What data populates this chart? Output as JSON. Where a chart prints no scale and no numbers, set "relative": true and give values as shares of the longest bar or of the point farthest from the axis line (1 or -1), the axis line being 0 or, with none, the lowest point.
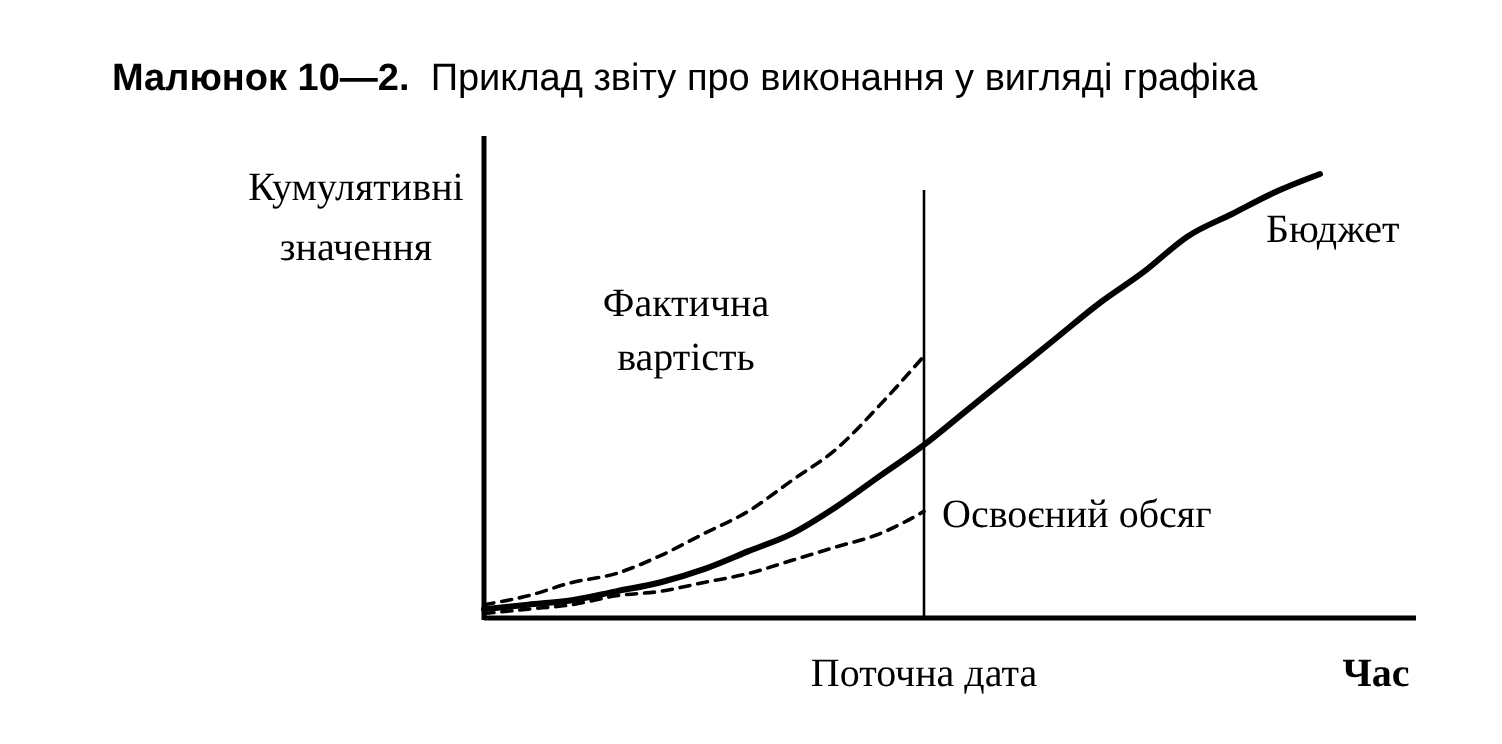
{
  "chart_data": {
    "type": "line",
    "title": "Малюнок 10—2.  Приклад звіту про виконання у вигляді графіка",
    "xlabel": "Час",
    "ylabel": "Кумулятивні значення",
    "relative": true,
    "categories": [
      null,
      null,
      null,
      null,
      null,
      null,
      null,
      null,
      null,
      null,
      null,
      null,
      null,
      null,
      null,
      null,
      null,
      null,
      null,
      null
    ],
    "series": [
      {
        "name": "Бюджет",
        "color": "#000000",
        "line_style": "solid",
        "values": [
          0.02,
          0.03,
          0.04,
          0.06,
          0.08,
          0.11,
          0.15,
          0.19,
          0.25,
          0.32,
          0.39,
          0.47,
          0.55,
          0.63,
          0.71,
          0.78,
          0.86,
          0.91,
          0.96,
          1
        ]
      },
      {
        "name": "Фактична вартість",
        "color": "#000000",
        "line_style": "dashed",
        "values": [
          0.03,
          0.05,
          0.08,
          0.1,
          0.14,
          0.19,
          0.24,
          0.31,
          0.38,
          0.48,
          0.59,
          null,
          null,
          null,
          null,
          null,
          null,
          null,
          null,
          null
        ]
      },
      {
        "name": "Освоєний обсяг",
        "color": "#000000",
        "line_style": "dashed",
        "values": [
          0.01,
          0.02,
          0.03,
          0.05,
          0.06,
          0.08,
          0.1,
          0.13,
          0.16,
          0.19,
          0.24,
          null,
          null,
          null,
          null,
          null,
          null,
          null,
          null,
          null
        ]
      }
    ],
    "annotations": [
      "Поточна дата"
    ]
  }
}
